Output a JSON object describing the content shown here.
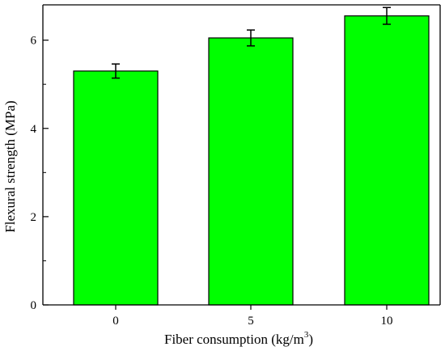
{
  "chart_data": {
    "type": "bar",
    "categories": [
      "0",
      "5",
      "10"
    ],
    "values": [
      5.3,
      6.05,
      6.55
    ],
    "errors": [
      0.16,
      0.18,
      0.19
    ],
    "xlabel": "Fiber consumption (kg/m",
    "xlabel_superscript": "3",
    "xlabel_suffix": ")",
    "ylabel": "Flexural strength (MPa)",
    "ylim": [
      0,
      6.8
    ],
    "yticks": [
      0,
      2,
      4,
      6
    ],
    "grid": false,
    "legend": false,
    "colors": {
      "bar_fill": "#00ff00",
      "bar_edge": "#000000",
      "axis": "#000000"
    }
  }
}
